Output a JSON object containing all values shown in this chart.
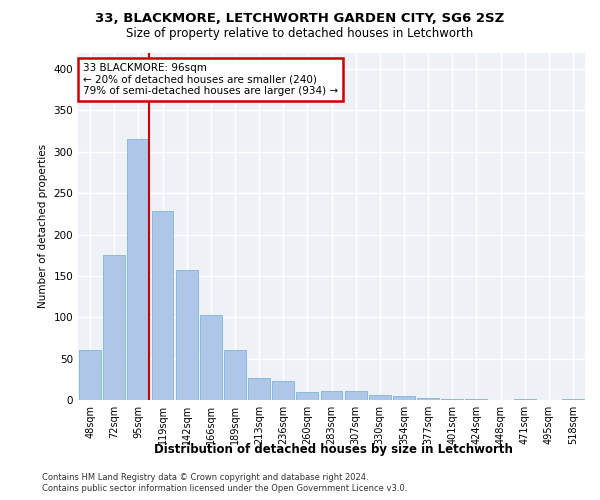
{
  "title1": "33, BLACKMORE, LETCHWORTH GARDEN CITY, SG6 2SZ",
  "title2": "Size of property relative to detached houses in Letchworth",
  "xlabel": "Distribution of detached houses by size in Letchworth",
  "ylabel": "Number of detached properties",
  "categories": [
    "48sqm",
    "72sqm",
    "95sqm",
    "119sqm",
    "142sqm",
    "166sqm",
    "189sqm",
    "213sqm",
    "236sqm",
    "260sqm",
    "283sqm",
    "307sqm",
    "330sqm",
    "354sqm",
    "377sqm",
    "401sqm",
    "424sqm",
    "448sqm",
    "471sqm",
    "495sqm",
    "518sqm"
  ],
  "values": [
    60,
    175,
    315,
    228,
    157,
    103,
    61,
    27,
    23,
    10,
    11,
    11,
    6,
    5,
    3,
    1,
    1,
    0,
    1,
    0,
    1
  ],
  "bar_color": "#aec6e8",
  "bar_edge_color": "#6baed6",
  "annotation_text": "33 BLACKMORE: 96sqm\n← 20% of detached houses are smaller (240)\n79% of semi-detached houses are larger (934) →",
  "annotation_box_color": "#ffffff",
  "annotation_box_edge_color": "#cc0000",
  "vline_color": "#cc0000",
  "ylim": [
    0,
    420
  ],
  "yticks": [
    0,
    50,
    100,
    150,
    200,
    250,
    300,
    350,
    400
  ],
  "footer1": "Contains HM Land Registry data © Crown copyright and database right 2024.",
  "footer2": "Contains public sector information licensed under the Open Government Licence v3.0.",
  "plot_bg_color": "#eef2f7"
}
